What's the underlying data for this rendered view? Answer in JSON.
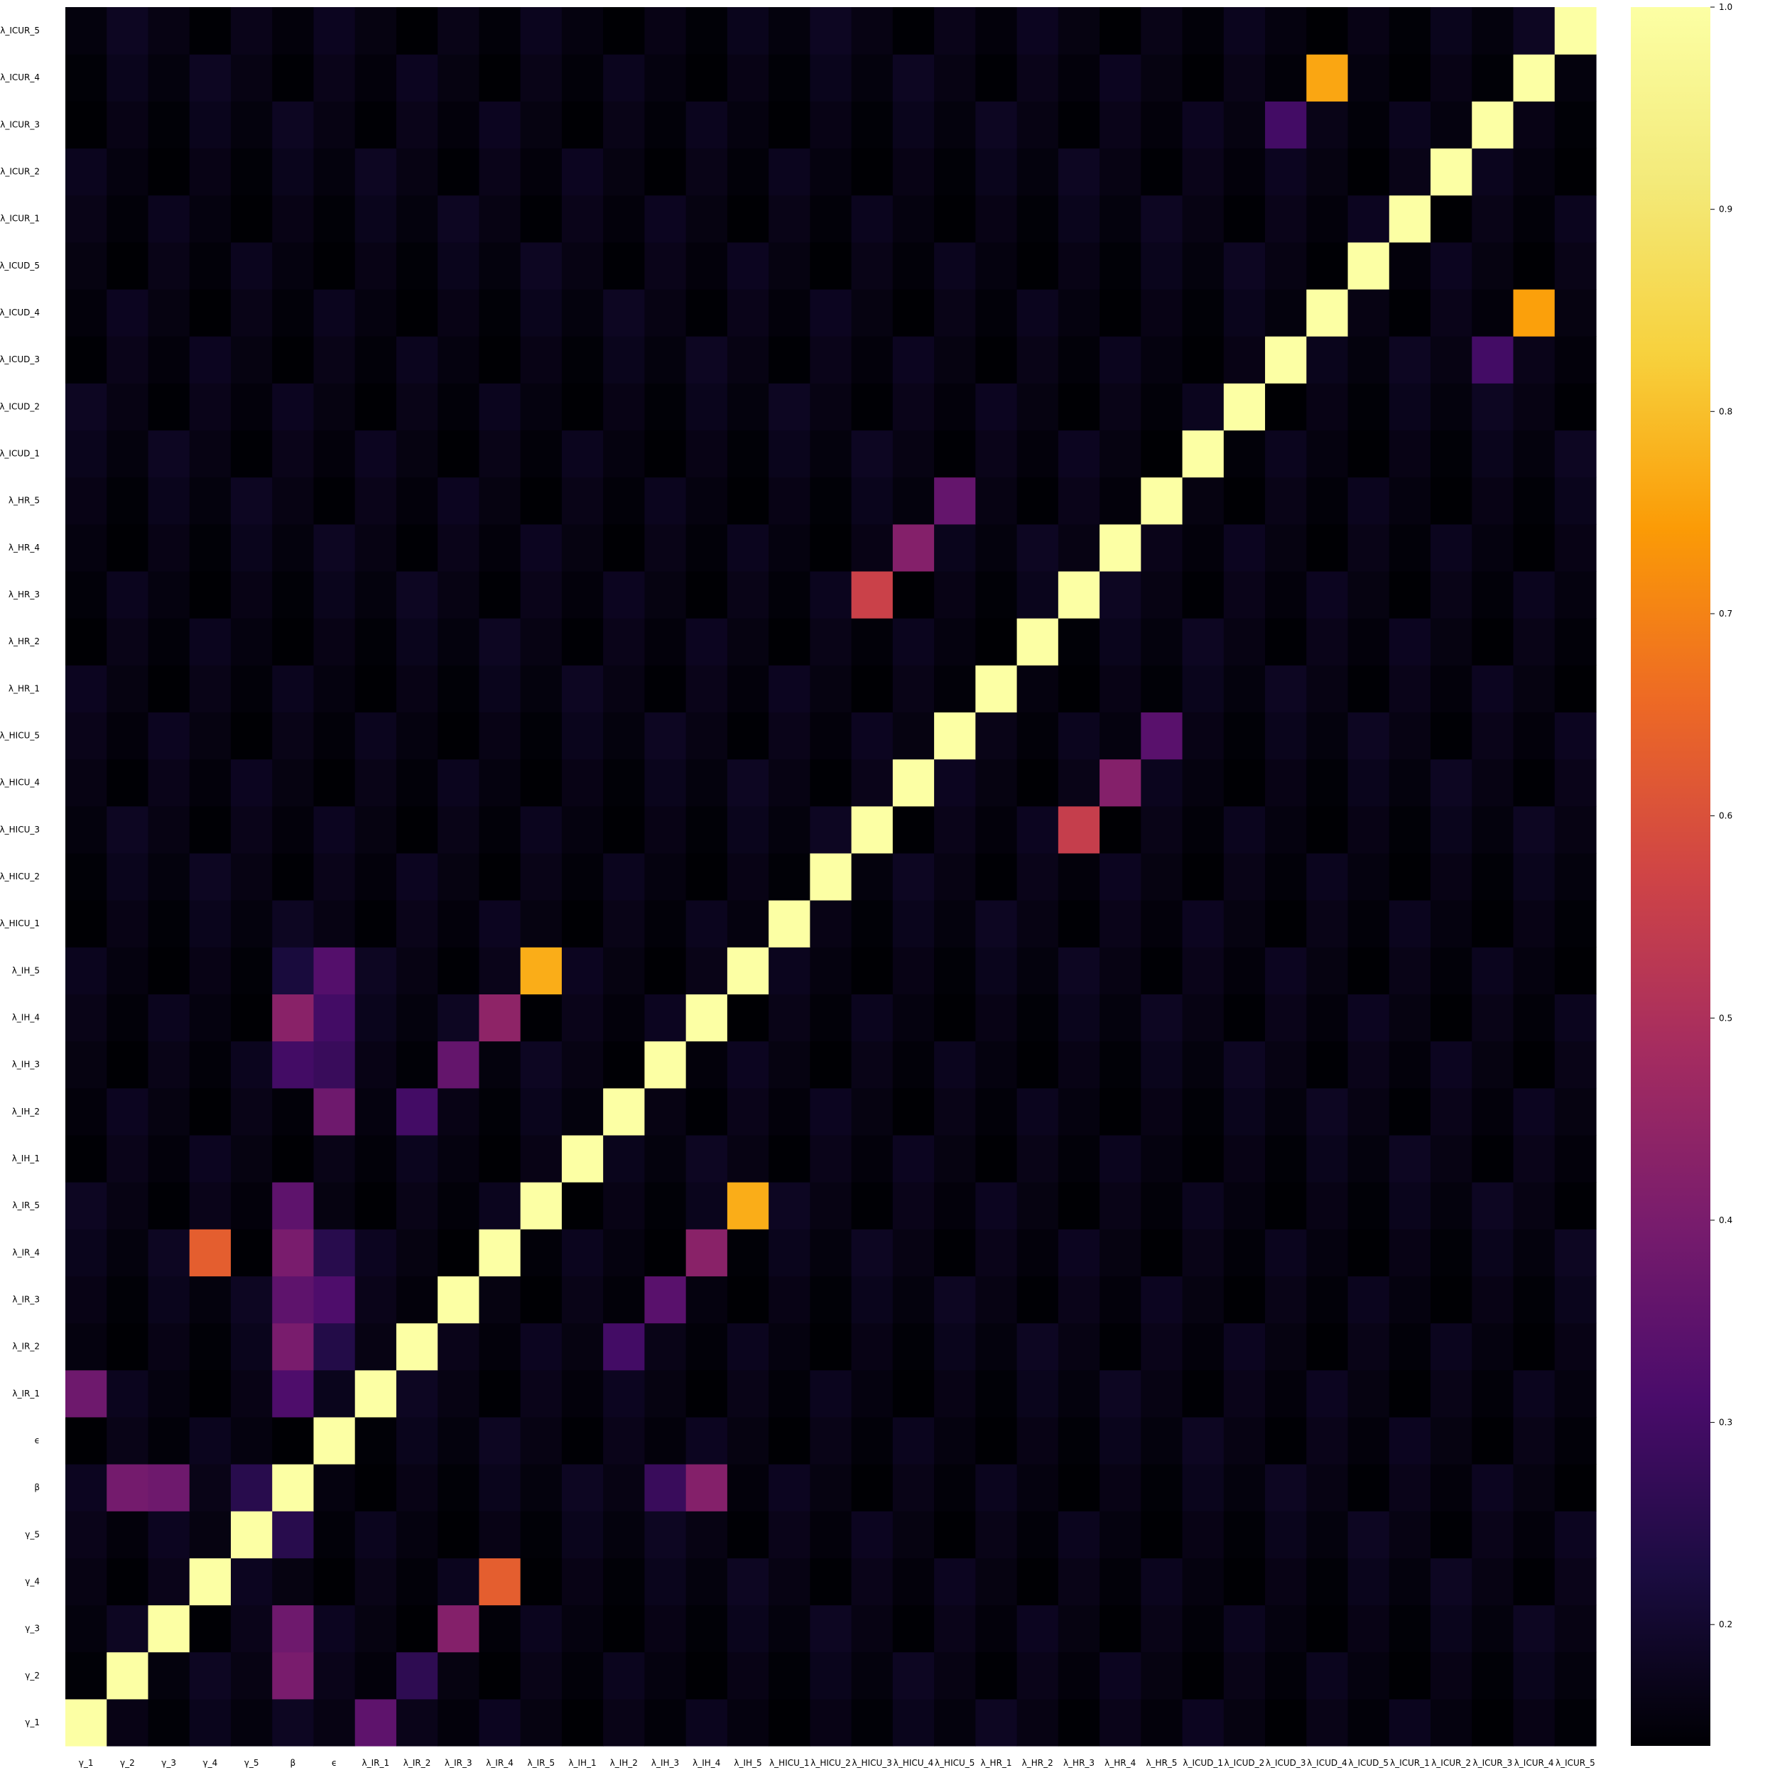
{
  "chart_data": {
    "type": "heatmap",
    "title": "",
    "xlabel": "",
    "ylabel": "",
    "labels": [
      "γ_1",
      "γ_2",
      "γ_3",
      "γ_4",
      "γ_5",
      "β",
      "ϵ",
      "λ_IR_1",
      "λ_IR_2",
      "λ_IR_3",
      "λ_IR_4",
      "λ_IR_5",
      "λ_IH_1",
      "λ_IH_2",
      "λ_IH_3",
      "λ_IH_4",
      "λ_IH_5",
      "λ_HICU_1",
      "λ_HICU_2",
      "λ_HICU_3",
      "λ_HICU_4",
      "λ_HICU_5",
      "λ_HR_1",
      "λ_HR_2",
      "λ_HR_3",
      "λ_HR_4",
      "λ_HR_5",
      "λ_ICUD_1",
      "λ_ICUD_2",
      "λ_ICUD_3",
      "λ_ICUD_4",
      "λ_ICUD_5",
      "λ_ICUR_1",
      "λ_ICUR_2",
      "λ_ICUR_3",
      "λ_ICUR_4",
      "λ_ICUR_5"
    ],
    "colormap": "inferno",
    "color_range": [
      0.14,
      1.0
    ],
    "colorbar_ticks": [
      "0.2",
      "0.3",
      "0.4",
      "0.5",
      "0.6",
      "0.7",
      "0.8",
      "0.9",
      "1.0"
    ],
    "colorbar_tick_values": [
      0.2,
      0.3,
      0.4,
      0.5,
      0.6,
      0.7,
      0.8,
      0.9,
      1.0
    ],
    "baseline_value": 0.16,
    "diagonal_value": 1.0,
    "highlights": [
      {
        "x": "γ_1",
        "y": "λ_IR_1",
        "value": 0.38
      },
      {
        "x": "γ_2",
        "y": "β",
        "value": 0.39
      },
      {
        "x": "γ_3",
        "y": "β",
        "value": 0.38
      },
      {
        "x": "γ_4",
        "y": "λ_IR_4",
        "value": 0.63
      },
      {
        "x": "γ_5",
        "y": "β",
        "value": 0.25
      },
      {
        "x": "β",
        "y": "γ_2",
        "value": 0.4
      },
      {
        "x": "β",
        "y": "γ_3",
        "value": 0.38
      },
      {
        "x": "β",
        "y": "γ_5",
        "value": 0.25
      },
      {
        "x": "β",
        "y": "λ_IR_1",
        "value": 0.32
      },
      {
        "x": "β",
        "y": "λ_IR_2",
        "value": 0.4
      },
      {
        "x": "β",
        "y": "λ_IR_3",
        "value": 0.35
      },
      {
        "x": "β",
        "y": "λ_IR_4",
        "value": 0.4
      },
      {
        "x": "β",
        "y": "λ_IR_5",
        "value": 0.35
      },
      {
        "x": "β",
        "y": "λ_IH_3",
        "value": 0.3
      },
      {
        "x": "β",
        "y": "λ_IH_4",
        "value": 0.43
      },
      {
        "x": "β",
        "y": "λ_IH_5",
        "value": 0.22
      },
      {
        "x": "ϵ",
        "y": "λ_IR_2",
        "value": 0.24
      },
      {
        "x": "ϵ",
        "y": "λ_IR_3",
        "value": 0.32
      },
      {
        "x": "ϵ",
        "y": "λ_IR_4",
        "value": 0.25
      },
      {
        "x": "ϵ",
        "y": "λ_IH_2",
        "value": 0.38
      },
      {
        "x": "ϵ",
        "y": "λ_IH_3",
        "value": 0.28
      },
      {
        "x": "ϵ",
        "y": "λ_IH_4",
        "value": 0.3
      },
      {
        "x": "ϵ",
        "y": "λ_IH_5",
        "value": 0.33
      },
      {
        "x": "λ_IR_1",
        "y": "γ_1",
        "value": 0.35
      },
      {
        "x": "λ_IR_2",
        "y": "γ_2",
        "value": 0.26
      },
      {
        "x": "λ_IR_3",
        "y": "γ_3",
        "value": 0.42
      },
      {
        "x": "λ_IR_2",
        "y": "λ_IH_2",
        "value": 0.3
      },
      {
        "x": "λ_IR_3",
        "y": "λ_IH_3",
        "value": 0.36
      },
      {
        "x": "λ_IR_4",
        "y": "λ_IH_4",
        "value": 0.44
      },
      {
        "x": "λ_IR_4",
        "y": "γ_4",
        "value": 0.63
      },
      {
        "x": "λ_IR_5",
        "y": "λ_IH_5",
        "value": 0.77
      },
      {
        "x": "λ_IH_5",
        "y": "λ_IR_5",
        "value": 0.77
      },
      {
        "x": "λ_IH_4",
        "y": "λ_IR_4",
        "value": 0.43
      },
      {
        "x": "λ_IH_3",
        "y": "λ_IR_3",
        "value": 0.34
      },
      {
        "x": "λ_IH_2",
        "y": "λ_IR_2",
        "value": 0.3
      },
      {
        "x": "λ_IH_3",
        "y": "β",
        "value": 0.28
      },
      {
        "x": "λ_IH_4",
        "y": "β",
        "value": 0.42
      },
      {
        "x": "λ_HICU_3",
        "y": "λ_HR_3",
        "value": 0.56
      },
      {
        "x": "λ_HICU_4",
        "y": "λ_HR_4",
        "value": 0.42
      },
      {
        "x": "λ_HICU_5",
        "y": "λ_HR_5",
        "value": 0.36
      },
      {
        "x": "λ_HR_3",
        "y": "λ_HICU_3",
        "value": 0.55
      },
      {
        "x": "λ_HR_4",
        "y": "λ_HICU_4",
        "value": 0.42
      },
      {
        "x": "λ_HR_5",
        "y": "λ_HICU_5",
        "value": 0.34
      },
      {
        "x": "λ_ICUD_3",
        "y": "λ_ICUR_3",
        "value": 0.3
      },
      {
        "x": "λ_ICUD_4",
        "y": "λ_ICUR_4",
        "value": 0.76
      },
      {
        "x": "λ_ICUR_3",
        "y": "λ_ICUD_3",
        "value": 0.3
      },
      {
        "x": "λ_ICUR_4",
        "y": "λ_ICUD_4",
        "value": 0.75
      }
    ]
  }
}
